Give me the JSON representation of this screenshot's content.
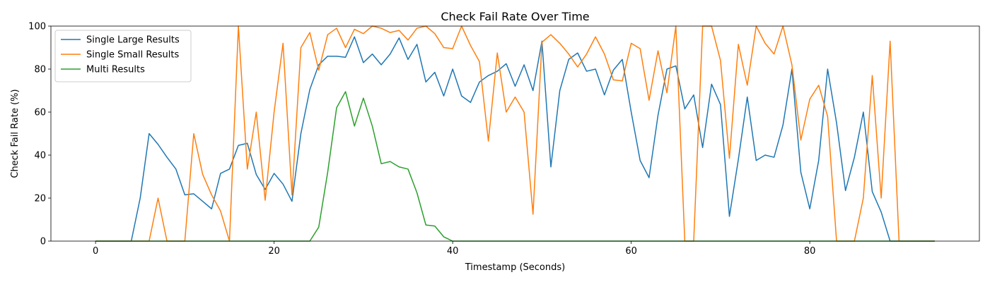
{
  "chart_data": {
    "type": "line",
    "title": "Check Fail Rate Over Time",
    "xlabel": "Timestamp (Seconds)",
    "ylabel": "Check Fail Rate (%)",
    "xlim": [
      -5,
      99
    ],
    "ylim": [
      0,
      100
    ],
    "xticks": [
      0,
      20,
      40,
      60,
      80
    ],
    "yticks": [
      0,
      20,
      40,
      60,
      80,
      100
    ],
    "grid": false,
    "legend_position": "top-left",
    "x": [
      0,
      1,
      2,
      3,
      4,
      5,
      6,
      7,
      8,
      9,
      10,
      11,
      12,
      13,
      14,
      15,
      16,
      17,
      18,
      19,
      20,
      21,
      22,
      23,
      24,
      25,
      26,
      27,
      28,
      29,
      30,
      31,
      32,
      33,
      34,
      35,
      36,
      37,
      38,
      39,
      40,
      41,
      42,
      43,
      44,
      45,
      46,
      47,
      48,
      49,
      50,
      51,
      52,
      53,
      54,
      55,
      56,
      57,
      58,
      59,
      60,
      61,
      62,
      63,
      64,
      65,
      66,
      67,
      68,
      69,
      70,
      71,
      72,
      73,
      74,
      75,
      76,
      77,
      78,
      79,
      80,
      81,
      82,
      83,
      84,
      85,
      86,
      87,
      88,
      89,
      90,
      91,
      92,
      93,
      94
    ],
    "series": [
      {
        "name": "Single Large Results",
        "color": "#1f77b4",
        "values": [
          0,
          0,
          0,
          0,
          0,
          20,
          50,
          45,
          39,
          33.5,
          21.5,
          22,
          18.5,
          15,
          31.5,
          33.5,
          44.5,
          45.5,
          31,
          24,
          31.5,
          26.5,
          18.5,
          50,
          70.5,
          82,
          86,
          86,
          85.5,
          95,
          83,
          87,
          82,
          87,
          94.5,
          84.5,
          91.5,
          74,
          78.5,
          67.5,
          80,
          67.5,
          64.5,
          74,
          77,
          79,
          82.5,
          72,
          82,
          70,
          93,
          34.5,
          70,
          84.5,
          87.5,
          79,
          80,
          68,
          79.5,
          84.5,
          60,
          37.5,
          29.5,
          58.5,
          80,
          81.5,
          61.5,
          68,
          43.5,
          73,
          63.5,
          11.5,
          38,
          67,
          37.5,
          40,
          39,
          54,
          80,
          32,
          15,
          37.5,
          80,
          55,
          23.5,
          39,
          60,
          23,
          13.5,
          0,
          0,
          0,
          0,
          0,
          0
        ]
      },
      {
        "name": "Single Small Results",
        "color": "#ff7f0e",
        "values": [
          0,
          0,
          0,
          0,
          0,
          0,
          0,
          20,
          0,
          0,
          0,
          50,
          31,
          21.5,
          14,
          0,
          100,
          33.5,
          60,
          19,
          60,
          92,
          21.5,
          90,
          97,
          79.5,
          96,
          99,
          90,
          98.5,
          96.5,
          100,
          99,
          97,
          98,
          93.5,
          99,
          100,
          96.5,
          90,
          89.5,
          100,
          91,
          83.5,
          46.5,
          87.5,
          60,
          67,
          60,
          12.5,
          92.5,
          96,
          92,
          87,
          81,
          87,
          95,
          87,
          75,
          74.5,
          92,
          89.5,
          65.5,
          88.5,
          69,
          100,
          0,
          0,
          100,
          100,
          84,
          38.5,
          91.5,
          72.5,
          100,
          92,
          87,
          100,
          82,
          47,
          66,
          72.5,
          58,
          0,
          0,
          0,
          20,
          77,
          20,
          93,
          0,
          0,
          0,
          0,
          0
        ]
      },
      {
        "name": "Multi Results",
        "color": "#2ca02c",
        "values": [
          0,
          0,
          0,
          0,
          0,
          0,
          0,
          0,
          0,
          0,
          0,
          0,
          0,
          0,
          0,
          0,
          0,
          0,
          0,
          0,
          0,
          0,
          0,
          0,
          0,
          6.5,
          32,
          62,
          69.5,
          53.5,
          66.5,
          53.5,
          36,
          37,
          34.5,
          33.5,
          22.5,
          7.5,
          7,
          2,
          0,
          0,
          0,
          0,
          0,
          0,
          0,
          0,
          0,
          0,
          0,
          0,
          0,
          0,
          0,
          0,
          0,
          0,
          0,
          0,
          0,
          0,
          0,
          0,
          0,
          0,
          0,
          0,
          0,
          0,
          0,
          0,
          0,
          0,
          0,
          0,
          0,
          0,
          0,
          0,
          0,
          0,
          0,
          0,
          0,
          0,
          0,
          0,
          0,
          0,
          0,
          0,
          0,
          0,
          0
        ]
      }
    ]
  }
}
